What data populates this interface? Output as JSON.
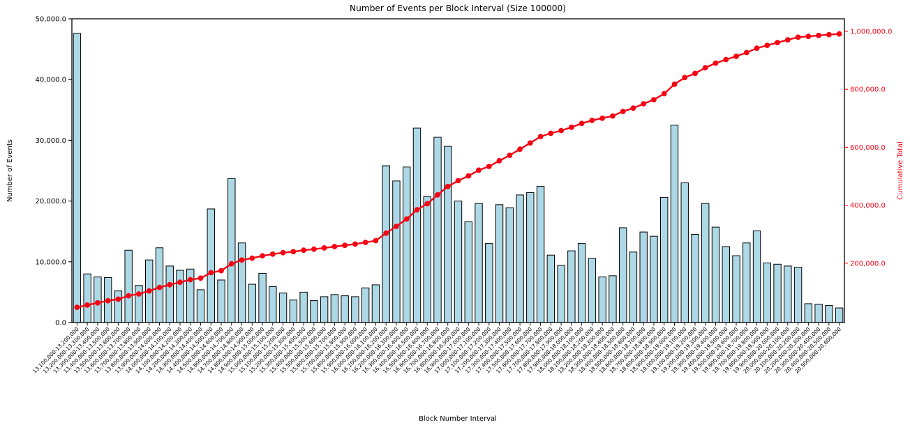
{
  "chart_data": {
    "type": "bar",
    "title": "Number of Events per Block Interval (Size 100000)",
    "xlabel": "Block Number Interval",
    "ylabel_left": "Number of Events",
    "ylabel_right": "Cumulative Total",
    "legend_position": "none",
    "grid": false,
    "colors": {
      "bar_fill": "#add8e6",
      "bar_edge": "#000000",
      "line": "#f50514",
      "axis": "#000000",
      "right_axis_text": "#f50514",
      "background": "#ffffff"
    },
    "y_axis_left": {
      "min": 0,
      "max": 50000,
      "tick_values": [
        0,
        10000,
        20000,
        30000,
        40000,
        50000
      ],
      "tick_labels": [
        "0.0",
        "10,000.0",
        "20,000.0",
        "30,000.0",
        "40,000.0",
        "50,000.0"
      ]
    },
    "y_axis_right": {
      "min": 0,
      "max": 1043000,
      "tick_values": [
        200000,
        400000,
        600000,
        800000,
        1000000
      ],
      "tick_labels": [
        "200,000.0",
        "400,000.0",
        "600,000.0",
        "800,000.0",
        "1,000,000.0"
      ]
    },
    "categories": [
      "13,100,000-13,200,000",
      "13,200,000-13,300,000",
      "13,300,000-13,400,000",
      "13,400,000-13,500,000",
      "13,500,000-13,600,000",
      "13,600,000-13,700,000",
      "13,700,000-13,800,000",
      "13,800,000-13,900,000",
      "13,900,000-14,000,000",
      "14,000,000-14,100,000",
      "14,100,000-14,200,000",
      "14,200,000-14,300,000",
      "14,300,000-14,400,000",
      "14,400,000-14,500,000",
      "14,500,000-14,600,000",
      "14,600,000-14,700,000",
      "14,700,000-14,800,000",
      "14,800,000-14,900,000",
      "14,900,000-15,000,000",
      "15,000,000-15,100,000",
      "15,100,000-15,200,000",
      "15,200,000-15,300,000",
      "15,300,000-15,400,000",
      "15,400,000-15,500,000",
      "15,500,000-15,600,000",
      "15,600,000-15,700,000",
      "15,700,000-15,800,000",
      "15,800,000-15,900,000",
      "15,900,000-16,000,000",
      "16,000,000-16,100,000",
      "16,100,000-16,200,000",
      "16,200,000-16,300,000",
      "16,300,000-16,400,000",
      "16,400,000-16,500,000",
      "16,500,000-16,600,000",
      "16,600,000-16,700,000",
      "16,700,000-16,800,000",
      "16,800,000-16,900,000",
      "16,900,000-17,000,000",
      "17,000,000-17,100,000",
      "17,100,000-17,200,000",
      "17,200,000-17,300,000",
      "17,300,000-17,400,000",
      "17,400,000-17,500,000",
      "17,500,000-17,600,000",
      "17,600,000-17,700,000",
      "17,700,000-17,800,000",
      "17,800,000-17,900,000",
      "17,900,000-18,000,000",
      "18,000,000-18,100,000",
      "18,100,000-18,200,000",
      "18,200,000-18,300,000",
      "18,300,000-18,400,000",
      "18,400,000-18,500,000",
      "18,500,000-18,600,000",
      "18,600,000-18,700,000",
      "18,700,000-18,800,000",
      "18,800,000-18,900,000",
      "18,900,000-19,000,000",
      "19,000,000-19,100,000",
      "19,100,000-19,200,000",
      "19,200,000-19,300,000",
      "19,300,000-19,400,000",
      "19,400,000-19,500,000",
      "19,500,000-19,600,000",
      "19,600,000-19,700,000",
      "19,700,000-19,800,000",
      "19,800,000-19,900,000",
      "19,900,000-20,000,000",
      "20,000,000-20,100,000",
      "20,100,000-20,200,000",
      "20,200,000-20,300,000",
      "20,300,000-20,400,000",
      "20,400,000-20,500,000",
      "20,500,000-20,600,000"
    ],
    "series": [
      {
        "name": "Number of Events",
        "type": "bar",
        "axis": "left",
        "values": [
          47600,
          8000,
          7500,
          7400,
          5200,
          11900,
          6100,
          10300,
          12300,
          9300,
          8600,
          8800,
          5400,
          18700,
          7000,
          23700,
          13100,
          6300,
          8100,
          5900,
          4850,
          3700,
          5000,
          3600,
          4250,
          4600,
          4400,
          4250,
          5700,
          6200,
          25800,
          23300,
          25600,
          32000,
          20700,
          30500,
          29000,
          20000,
          16600,
          19600,
          13000,
          19400,
          18900,
          21000,
          21400,
          22400,
          11100,
          9400,
          11800,
          13000,
          10550,
          7500,
          7700,
          15600,
          11600,
          14900,
          14200,
          20600,
          32500,
          23000,
          14500,
          19600,
          15700,
          12500,
          11000,
          13100,
          15100,
          9800,
          9600,
          9300,
          9100,
          3100,
          3000,
          2800,
          2400
        ]
      },
      {
        "name": "Cumulative Total",
        "type": "line",
        "axis": "right",
        "derivation": "running_sum_of_bar_series",
        "final_value": 991000
      }
    ]
  }
}
